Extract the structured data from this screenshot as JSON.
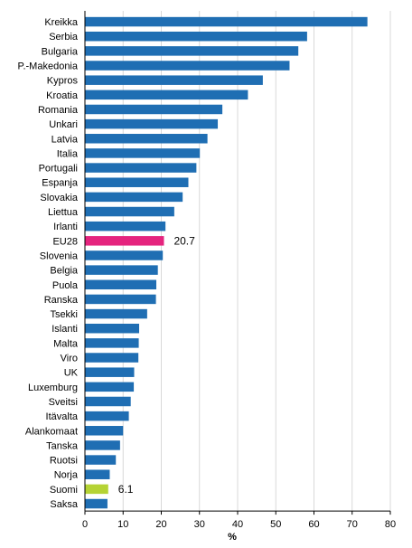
{
  "chart_data": {
    "type": "bar",
    "orientation": "horizontal",
    "categories": [
      "Kreikka",
      "Serbia",
      "Bulgaria",
      "P.-Makedonia",
      "Kypros",
      "Kroatia",
      "Romania",
      "Unkari",
      "Latvia",
      "Italia",
      "Portugali",
      "Espanja",
      "Slovakia",
      "Liettua",
      "Irlanti",
      "EU28",
      "Slovenia",
      "Belgia",
      "Puola",
      "Ranska",
      "Tsekki",
      "Islanti",
      "Malta",
      "Viro",
      "UK",
      "Luxemburg",
      "Sveitsi",
      "Itävalta",
      "Alankomaat",
      "Tanska",
      "Ruotsi",
      "Norja",
      "Suomi",
      "Saksa"
    ],
    "values": [
      74,
      58.2,
      55.9,
      53.6,
      46.6,
      42.7,
      36,
      34.8,
      32.1,
      30.1,
      29.2,
      27.1,
      25.6,
      23.4,
      21.1,
      20.7,
      20.4,
      19.1,
      18.7,
      18.6,
      16.3,
      14.2,
      14.1,
      14,
      12.9,
      12.8,
      12,
      11.5,
      10,
      9.2,
      8.1,
      6.5,
      6.1,
      5.9
    ],
    "colors": {
      "default": "#1f6eb3",
      "highlight": {
        "EU28": "#e5247e",
        "Suomi": "#b5d334"
      }
    },
    "data_labels": [
      {
        "category": "EU28",
        "text": "20.7"
      },
      {
        "category": "Suomi",
        "text": "6.1"
      }
    ],
    "xlim": [
      0,
      80
    ],
    "xticks": [
      0,
      10,
      20,
      30,
      40,
      50,
      60,
      70,
      80
    ],
    "xlabel": "%",
    "grid": "vertical"
  }
}
